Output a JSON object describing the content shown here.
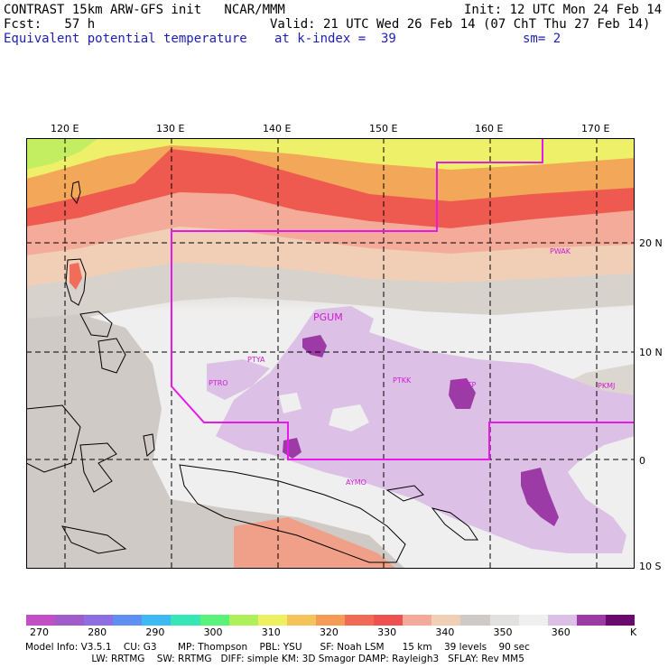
{
  "header": {
    "model_line": "CONTRAST 15km ARW-GFS init   NCAR/MMM",
    "init": "Init: 12 UTC Mon 24 Feb 14",
    "fcst": "Fcst:   57 h",
    "valid": "Valid: 21 UTC Wed 26 Feb 14 (07 ChT Thu 27 Feb 14)",
    "field": "Equivalent potential temperature",
    "level": "at k-index =  39",
    "smoothing": "sm= 2"
  },
  "map": {
    "lon_labels": [
      "120 E",
      "130 E",
      "140 E",
      "150 E",
      "160 E",
      "170 E"
    ],
    "lat_labels": [
      "20 N",
      "10 N",
      "0",
      "10 S"
    ],
    "stations": [
      {
        "id": "PGUM",
        "big": true
      },
      {
        "id": "PWAK",
        "big": false
      },
      {
        "id": "PTYA",
        "big": false
      },
      {
        "id": "PTRO",
        "big": false
      },
      {
        "id": "PTKK",
        "big": false
      },
      {
        "id": "PTTP",
        "big": false
      },
      {
        "id": "PKMJ",
        "big": false
      },
      {
        "id": "AYMO",
        "big": false
      }
    ],
    "boundary_color": "#e818e8"
  },
  "colorbar": {
    "colors": [
      "#c24fc4",
      "#a15ccb",
      "#8d6fe2",
      "#5f8ff2",
      "#3fb9f2",
      "#37e6b6",
      "#5af27a",
      "#aef05a",
      "#edf060",
      "#f4c45a",
      "#f49b58",
      "#f06a55",
      "#ee5250",
      "#f5a99a",
      "#f0cfb6",
      "#cfcac6",
      "#e3e1df",
      "#efefef",
      "#dcc0e6",
      "#9c3aa6",
      "#6a0a70"
    ],
    "labels": [
      "270",
      "280",
      "290",
      "300",
      "310",
      "320",
      "330",
      "340",
      "350",
      "360"
    ],
    "unit": "K"
  },
  "model_info": {
    "line1": "Model Info: V3.5.1    CU: G3       MP: Thompson    PBL: YSU      SF: Noah LSM      15 km    39 levels    90 sec",
    "line2": "                      LW: RRTMG    SW: RRTMG   DIFF: simple KM: 3D Smagor DAMP: Rayleigh3   SFLAY: Rev MM5"
  }
}
